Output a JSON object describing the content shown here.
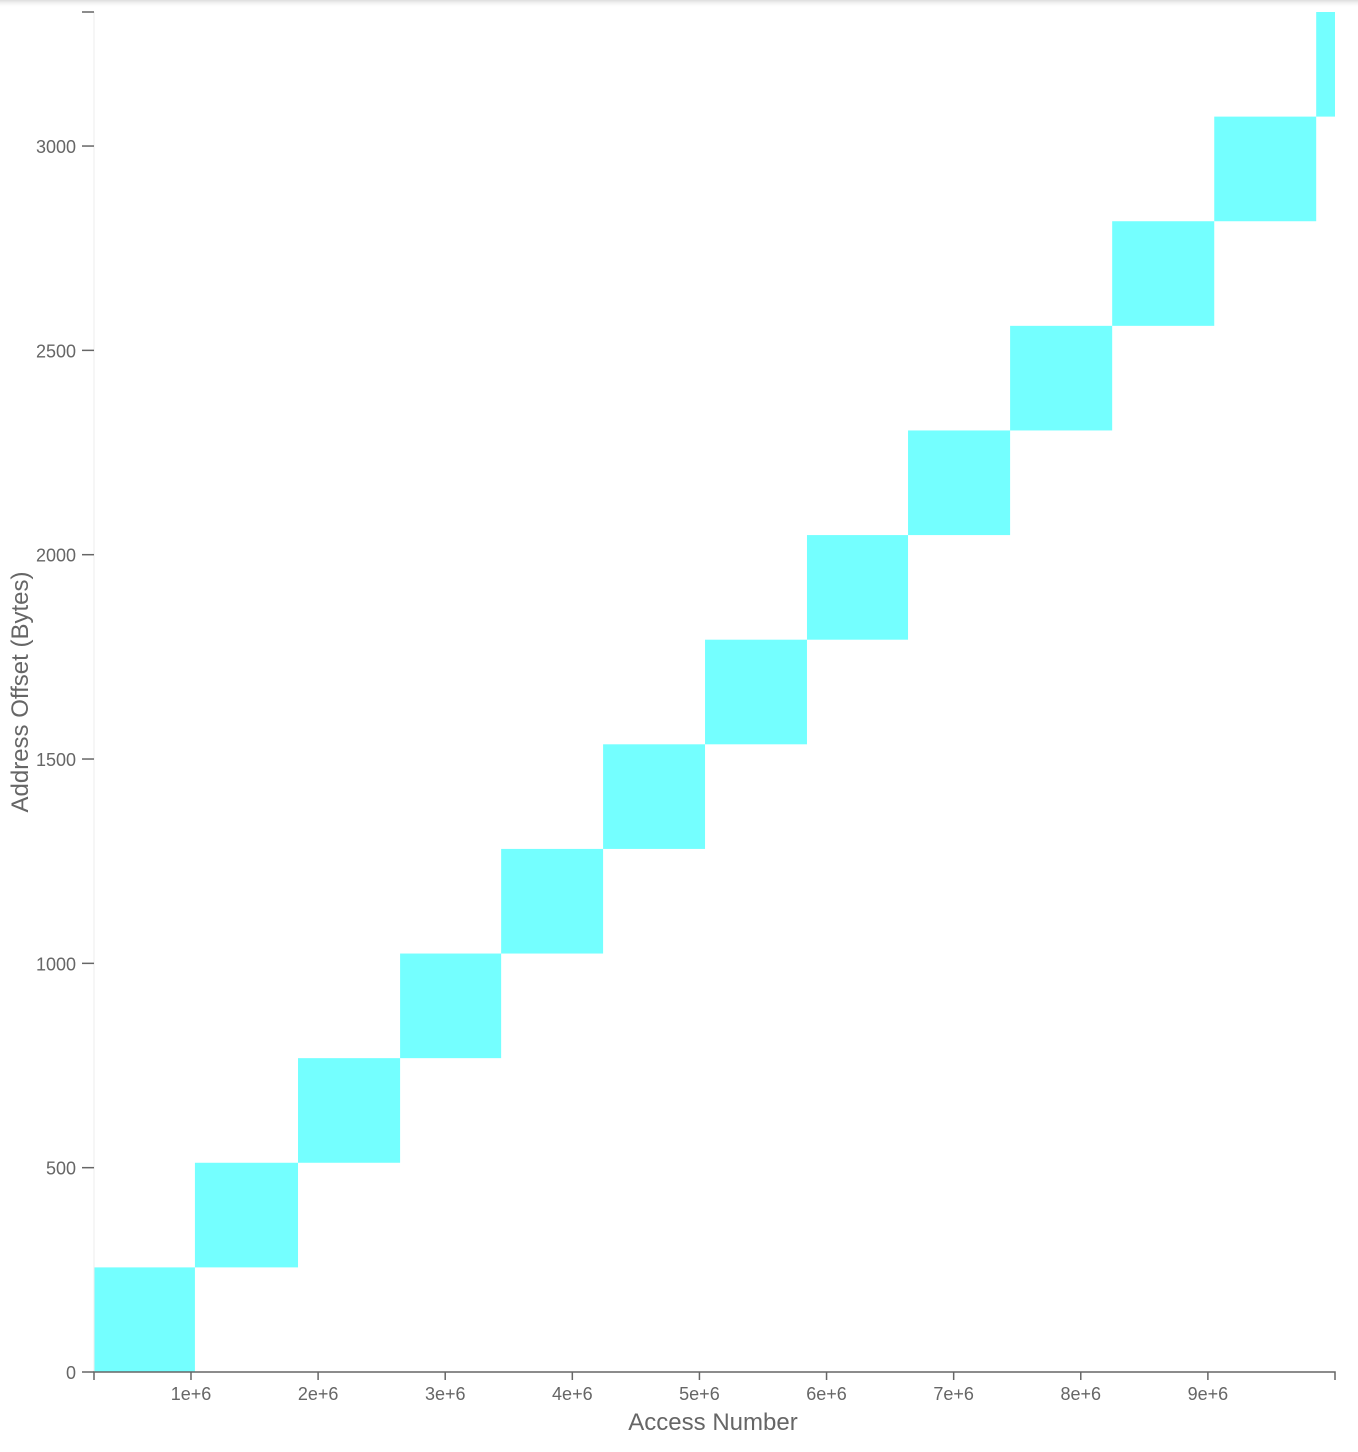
{
  "chart_data": {
    "type": "block",
    "x_label": "Access Number",
    "y_label": "Address Offset (Bytes)",
    "color": "#74ffff",
    "xlim": [
      237000,
      10000000
    ],
    "ylim": [
      0,
      3328
    ],
    "xticks": [
      {
        "value": 1000000,
        "label": "1e+6"
      },
      {
        "value": 2000000,
        "label": "2e+6"
      },
      {
        "value": 3000000,
        "label": "3e+6"
      },
      {
        "value": 4000000,
        "label": "4e+6"
      },
      {
        "value": 5000000,
        "label": "5e+6"
      },
      {
        "value": 6000000,
        "label": "6e+6"
      },
      {
        "value": 7000000,
        "label": "7e+6"
      },
      {
        "value": 8000000,
        "label": "8e+6"
      },
      {
        "value": 9000000,
        "label": "9e+6"
      }
    ],
    "yticks": [
      0,
      500,
      1000,
      1500,
      2000,
      2500,
      3000
    ],
    "blocks": [
      {
        "x": [
          237000,
          1031000
        ],
        "y": [
          0,
          256
        ]
      },
      {
        "x": [
          1031000,
          1842000
        ],
        "y": [
          256,
          512
        ]
      },
      {
        "x": [
          1842000,
          2645000
        ],
        "y": [
          512,
          768
        ]
      },
      {
        "x": [
          2645000,
          3440000
        ],
        "y": [
          768,
          1024
        ]
      },
      {
        "x": [
          3440000,
          4242000
        ],
        "y": [
          1024,
          1280
        ]
      },
      {
        "x": [
          4242000,
          5044000
        ],
        "y": [
          1280,
          1536
        ]
      },
      {
        "x": [
          5044000,
          5846000
        ],
        "y": [
          1536,
          1792
        ]
      },
      {
        "x": [
          5846000,
          6641000
        ],
        "y": [
          1792,
          2048
        ]
      },
      {
        "x": [
          6641000,
          7444000
        ],
        "y": [
          2048,
          2304
        ]
      },
      {
        "x": [
          7444000,
          8247000
        ],
        "y": [
          2304,
          2560
        ]
      },
      {
        "x": [
          8247000,
          9050000
        ],
        "y": [
          2560,
          2816
        ]
      },
      {
        "x": [
          9050000,
          9852000
        ],
        "y": [
          2816,
          3072
        ]
      },
      {
        "x": [
          9852000,
          10000000
        ],
        "y": [
          3072,
          3328
        ]
      }
    ]
  }
}
